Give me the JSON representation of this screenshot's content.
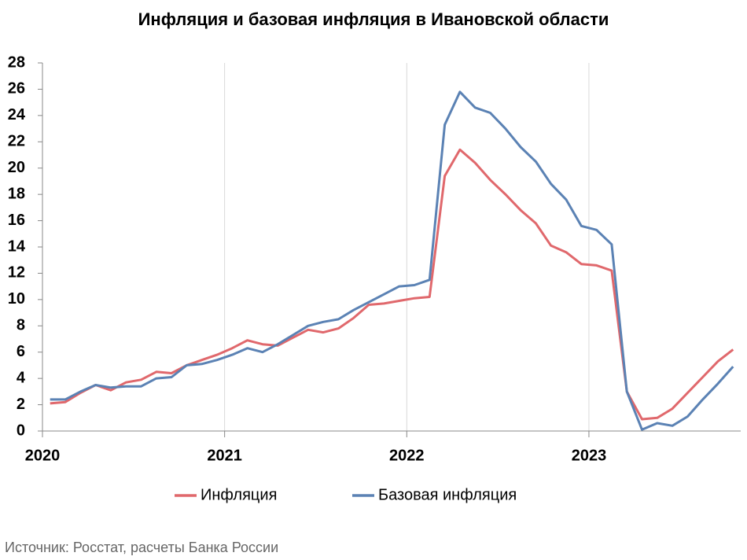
{
  "chart_data": {
    "type": "line",
    "title": "Инфляция и базовая инфляция в Ивановской области",
    "source": "Источник: Росстат, расчеты Банка России",
    "categories": [
      "2020",
      null,
      null,
      null,
      null,
      null,
      null,
      null,
      null,
      null,
      null,
      null,
      "2021",
      null,
      null,
      null,
      null,
      null,
      null,
      null,
      null,
      null,
      null,
      null,
      "2022",
      null,
      null,
      null,
      null,
      null,
      null,
      null,
      null,
      null,
      null,
      null,
      "2023",
      null,
      null,
      null,
      null,
      null,
      null,
      null,
      null,
      null
    ],
    "series": [
      {
        "name": "Инфляция",
        "color": "#e0686c",
        "values": [
          2.1,
          2.2,
          2.9,
          3.5,
          3.1,
          3.7,
          3.9,
          4.5,
          4.4,
          5.0,
          5.4,
          5.8,
          6.3,
          6.9,
          6.6,
          6.5,
          7.1,
          7.7,
          7.5,
          7.8,
          8.6,
          9.6,
          9.7,
          9.9,
          10.1,
          10.2,
          19.4,
          21.4,
          20.4,
          19.1,
          18.0,
          16.8,
          15.8,
          14.1,
          13.6,
          12.7,
          12.6,
          12.2,
          3.0,
          0.9,
          1.0,
          1.7,
          2.9,
          4.1,
          5.3,
          6.2
        ]
      },
      {
        "name": "Базовая инфляция",
        "color": "#5b82b4",
        "values": [
          2.4,
          2.4,
          3.0,
          3.5,
          3.3,
          3.4,
          3.4,
          4.0,
          4.1,
          5.0,
          5.1,
          5.4,
          5.8,
          6.3,
          6.0,
          6.6,
          7.3,
          8.0,
          8.3,
          8.5,
          9.2,
          9.8,
          10.4,
          11.0,
          11.1,
          11.5,
          23.3,
          25.8,
          24.6,
          24.2,
          23.0,
          21.6,
          20.5,
          18.8,
          17.6,
          15.6,
          15.3,
          14.2,
          3.0,
          0.1,
          0.6,
          0.4,
          1.1,
          2.4,
          3.6,
          4.9
        ]
      }
    ],
    "ylim": [
      0,
      28
    ],
    "yticks": [
      0,
      2,
      4,
      6,
      8,
      10,
      12,
      14,
      16,
      18,
      20,
      22,
      24,
      26,
      28
    ],
    "grid": true,
    "legend": "bottom"
  }
}
